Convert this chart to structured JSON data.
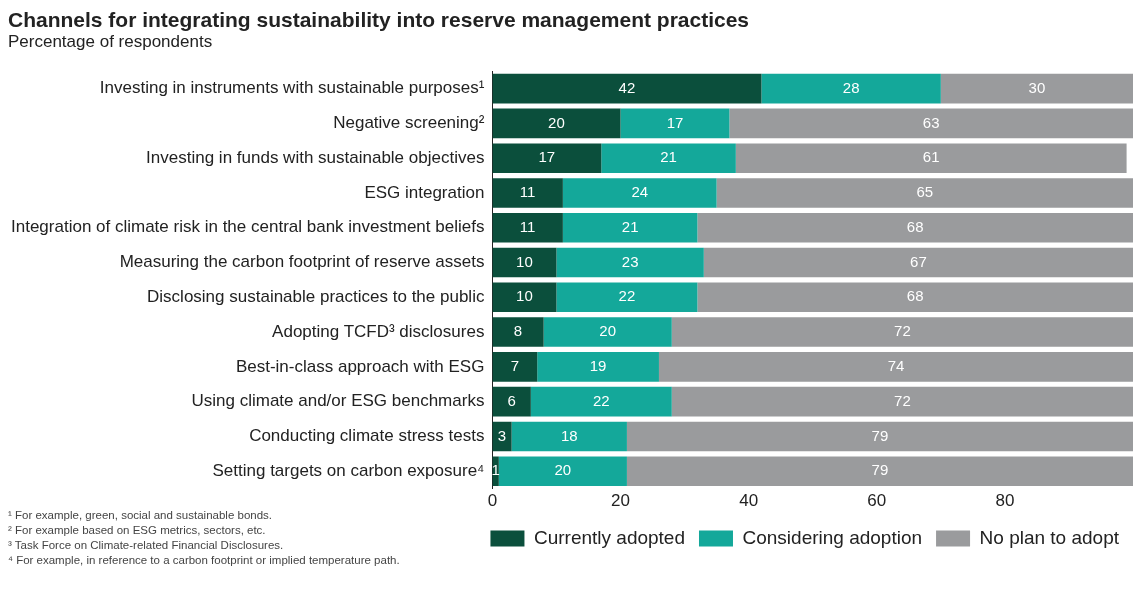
{
  "chart_data": {
    "type": "bar",
    "orientation": "horizontal",
    "stacked": true,
    "title": "Channels for integrating sustainability into reserve management practices",
    "subtitle": "Percentage of respondents",
    "categories": [
      "Investing in instruments with sustainable purposes¹",
      "Negative screening²",
      "Investing in funds with sustainable objectives",
      "ESG integration",
      "Integration of climate risk in the central bank investment beliefs",
      "Measuring the carbon footprint of reserve assets",
      "Disclosing sustainable practices to the public",
      "Adopting TCFD³ disclosures",
      "Best-in-class approach with ESG",
      "Using climate and/or ESG benchmarks",
      "Conducting climate stress tests",
      "Setting targets on carbon exposure⁴"
    ],
    "series": [
      {
        "name": "Currently adopted",
        "color": "#0b4f3c",
        "values": [
          42,
          20,
          17,
          11,
          11,
          10,
          10,
          8,
          7,
          6,
          3,
          1
        ]
      },
      {
        "name": "Considering adoption",
        "color": "#14a89a",
        "values": [
          28,
          17,
          21,
          24,
          21,
          23,
          22,
          20,
          19,
          22,
          18,
          20
        ]
      },
      {
        "name": "No plan to adopt",
        "color": "#9a9b9d",
        "values": [
          30,
          63,
          61,
          65,
          68,
          67,
          68,
          72,
          74,
          72,
          79,
          79
        ]
      }
    ],
    "xlim": [
      0,
      100
    ],
    "xticks": [
      0,
      20,
      40,
      60,
      80
    ],
    "grid": false,
    "legend": "bottom right",
    "data_labels": true,
    "annotations": [
      "¹ For example, green, social and sustainable bonds.",
      "² For example based on ESG metrics, sectors, etc.",
      "³ Task Force on Climate-related Financial Disclosures.",
      "⁴ For example, in reference to a carbon footprint or implied temperature path."
    ]
  }
}
